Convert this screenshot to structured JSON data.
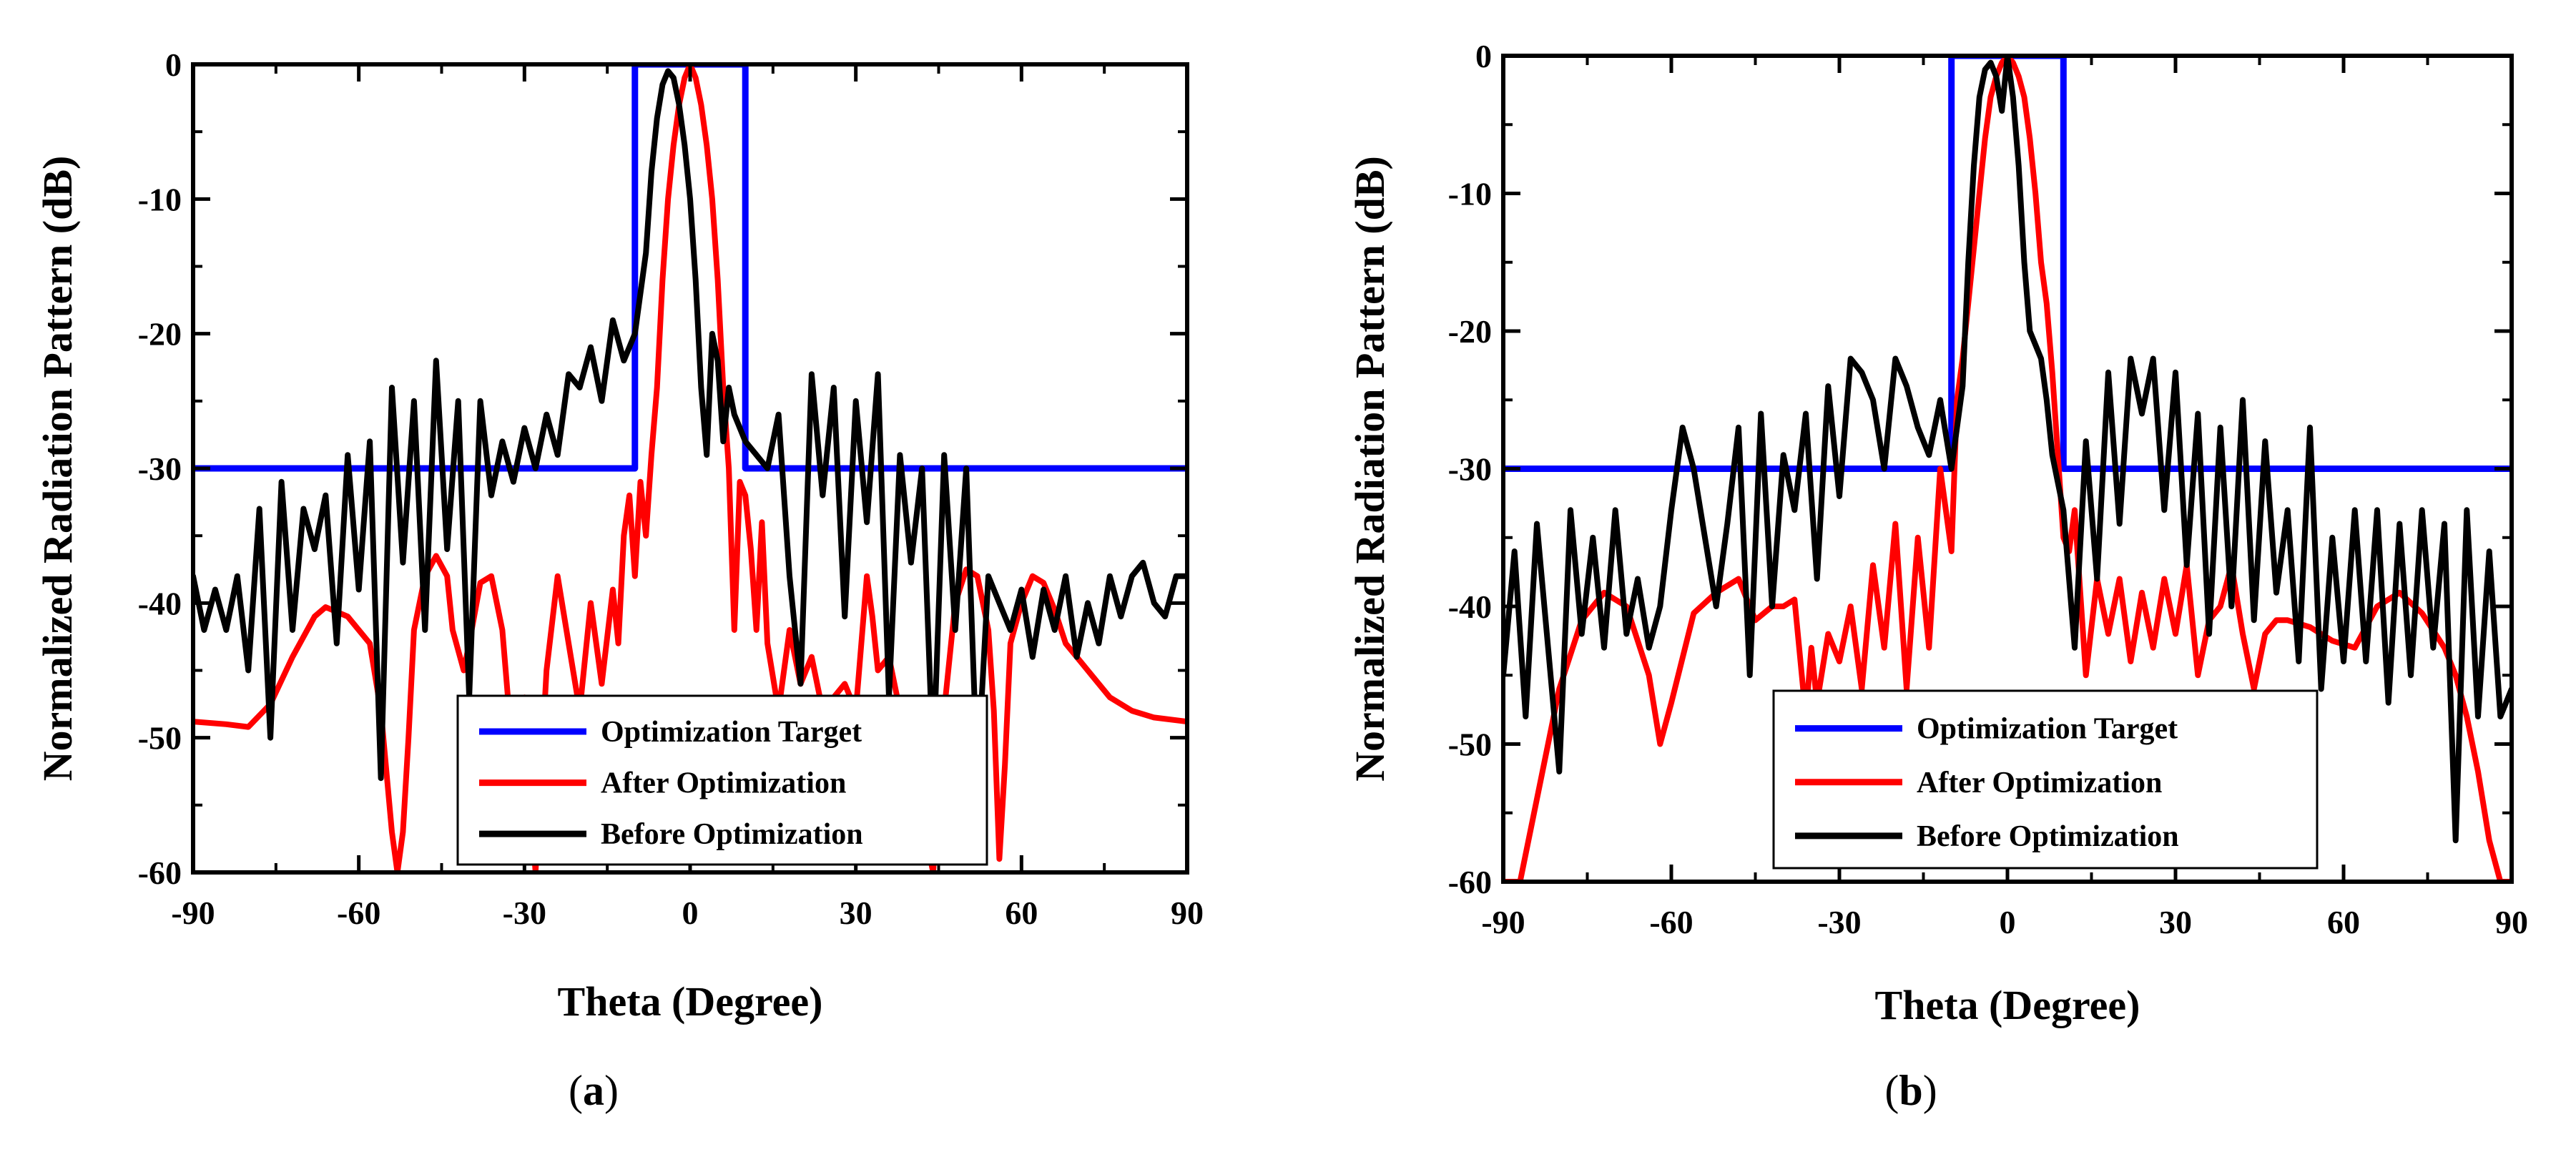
{
  "colors": {
    "optimization_target": "#0000ff",
    "after_optimization": "#ff0000",
    "before_optimization": "#000000",
    "axes": "#000000",
    "background": "#ffffff"
  },
  "chart_data": [
    {
      "type": "line",
      "panel_label": "a",
      "title": "",
      "xlabel": "Theta (Degree)",
      "ylabel": "Normalized Radiation Pattern (dB)",
      "xlim": [
        -90,
        90
      ],
      "ylim": [
        -60,
        0
      ],
      "xticks": [
        -90,
        -60,
        -30,
        0,
        30,
        60,
        90
      ],
      "yticks": [
        0,
        -10,
        -20,
        -30,
        -40,
        -50,
        -60
      ],
      "x_tick_labels": [
        "-90",
        "-60",
        "-30",
        "0",
        "30",
        "60",
        "90"
      ],
      "y_tick_labels": [
        "0",
        "-10",
        "-20",
        "-30",
        "-40",
        "-50",
        "-60"
      ],
      "grid": false,
      "legend_position": "bottom-right",
      "series": [
        {
          "name": "Optimization Target",
          "color": "#0000ff",
          "x": [
            -90,
            -10,
            -10,
            10,
            10,
            90
          ],
          "y": [
            -30,
            -30,
            0,
            0,
            -30,
            -30
          ]
        },
        {
          "name": "After Optimization",
          "color": "#ff0000",
          "x": [
            -90,
            -84,
            -80,
            -76,
            -72,
            -68,
            -66,
            -62,
            -58,
            -56,
            -54,
            -53,
            -52,
            -51,
            -50,
            -48,
            -46,
            -44,
            -43,
            -41,
            -40,
            -38,
            -36,
            -34,
            -33,
            -32,
            -30,
            -28,
            -26,
            -24,
            -22,
            -20,
            -18,
            -16,
            -14,
            -13,
            -12,
            -11,
            -10,
            -9,
            -8,
            -7,
            -6,
            -5,
            -4,
            -3,
            -2,
            -1,
            0,
            1,
            2,
            3,
            4,
            5,
            6,
            7,
            8,
            9,
            10,
            11,
            12,
            13,
            14,
            16,
            18,
            20,
            22,
            24,
            26,
            28,
            30,
            32,
            33,
            34,
            36,
            38,
            40,
            42,
            44,
            46,
            48,
            50,
            52,
            54,
            55,
            56,
            57,
            58,
            60,
            62,
            64,
            66,
            68,
            72,
            76,
            80,
            84,
            90
          ],
          "y": [
            -48.8,
            -49,
            -49.2,
            -47.5,
            -44,
            -41,
            -40.3,
            -41,
            -43,
            -48,
            -57,
            -60,
            -57,
            -50,
            -42,
            -38,
            -36.5,
            -38,
            -42,
            -45,
            -43,
            -38.5,
            -38,
            -42,
            -47,
            -52,
            -47,
            -60,
            -45,
            -38,
            -43,
            -48,
            -40,
            -46,
            -39,
            -43,
            -35,
            -32,
            -38,
            -31,
            -35,
            -29,
            -24,
            -16,
            -10,
            -6,
            -3,
            -1,
            0,
            -1,
            -3,
            -6,
            -10,
            -16,
            -24,
            -30,
            -42,
            -31,
            -32,
            -36,
            -42,
            -34,
            -43,
            -48,
            -42,
            -46,
            -44,
            -48,
            -47,
            -46,
            -48,
            -38,
            -41,
            -45,
            -44,
            -48,
            -51,
            -56,
            -60,
            -48,
            -40,
            -37.5,
            -38,
            -42,
            -48,
            -59,
            -52,
            -43,
            -40,
            -38,
            -38.5,
            -40.5,
            -43,
            -45,
            -47,
            -48,
            -48.5,
            -48.8
          ]
        },
        {
          "name": "Before Optimization",
          "color": "#000000",
          "x": [
            -90,
            -88,
            -86,
            -84,
            -82,
            -80,
            -78,
            -76,
            -74,
            -72,
            -70,
            -68,
            -66,
            -64,
            -62,
            -60,
            -58,
            -56,
            -54,
            -52,
            -50,
            -48,
            -46,
            -44,
            -42,
            -40,
            -38,
            -36,
            -34,
            -32,
            -30,
            -28,
            -26,
            -24,
            -22,
            -20,
            -18,
            -16,
            -14,
            -12,
            -10,
            -8,
            -7,
            -6,
            -5,
            -4,
            -3,
            -2,
            -1,
            0,
            1,
            2,
            3,
            4,
            5,
            6,
            7,
            8,
            10,
            12,
            14,
            16,
            18,
            20,
            22,
            24,
            26,
            28,
            30,
            32,
            34,
            36,
            38,
            40,
            42,
            44,
            46,
            48,
            50,
            52,
            54,
            56,
            58,
            60,
            62,
            64,
            66,
            68,
            70,
            72,
            74,
            76,
            78,
            80,
            82,
            84,
            86,
            88,
            90
          ],
          "y": [
            -38,
            -42,
            -39,
            -42,
            -38,
            -45,
            -33,
            -50,
            -31,
            -42,
            -33,
            -36,
            -32,
            -43,
            -29,
            -39,
            -28,
            -53,
            -24,
            -37,
            -25,
            -42,
            -22,
            -36,
            -25,
            -47,
            -25,
            -32,
            -28,
            -31,
            -27,
            -30,
            -26,
            -29,
            -23,
            -24,
            -21,
            -25,
            -19,
            -22,
            -20,
            -14,
            -8,
            -4,
            -1.5,
            -0.5,
            -1,
            -3,
            -6,
            -10,
            -16,
            -24,
            -29,
            -20,
            -22,
            -28,
            -24,
            -26,
            -28,
            -29,
            -30,
            -26,
            -38,
            -46,
            -23,
            -32,
            -24,
            -41,
            -25,
            -34,
            -23,
            -47,
            -29,
            -37,
            -30,
            -52,
            -29,
            -42,
            -30,
            -53,
            -38,
            -40,
            -42,
            -39,
            -44,
            -39,
            -42,
            -38,
            -44,
            -40,
            -43,
            -38,
            -41,
            -38,
            -37,
            -40,
            -41,
            -38,
            -38
          ]
        }
      ]
    },
    {
      "type": "line",
      "panel_label": "b",
      "title": "",
      "xlabel": "Theta (Degree)",
      "ylabel": "Normalized Radiation Pattern (dB)",
      "xlim": [
        -90,
        90
      ],
      "ylim": [
        -60,
        0
      ],
      "xticks": [
        -90,
        -60,
        -30,
        0,
        30,
        60,
        90
      ],
      "yticks": [
        0,
        -10,
        -20,
        -30,
        -40,
        -50,
        -60
      ],
      "x_tick_labels": [
        "-90",
        "-60",
        "-30",
        "0",
        "30",
        "60",
        "90"
      ],
      "y_tick_labels": [
        "0",
        "-10",
        "-20",
        "-30",
        "-40",
        "-50",
        "-60"
      ],
      "grid": false,
      "legend_position": "bottom-right",
      "series": [
        {
          "name": "Optimization Target",
          "color": "#0000ff",
          "x": [
            -90,
            -10,
            -10,
            10,
            10,
            90
          ],
          "y": [
            -30,
            -30,
            0,
            0,
            -30,
            -30
          ]
        },
        {
          "name": "After Optimization",
          "color": "#ff0000",
          "x": [
            -90,
            -87,
            -84,
            -80,
            -76,
            -72,
            -68,
            -64,
            -62,
            -60,
            -56,
            -52,
            -48,
            -45,
            -42,
            -40,
            -38,
            -36,
            -35,
            -34,
            -32,
            -30,
            -28,
            -26,
            -24,
            -22,
            -20,
            -18,
            -16,
            -14,
            -12,
            -10,
            -9,
            -8,
            -7,
            -6,
            -5,
            -4,
            -3,
            -2,
            -1,
            0,
            1,
            2,
            3,
            4,
            5,
            6,
            7,
            8,
            9,
            10,
            11,
            12,
            14,
            16,
            18,
            20,
            22,
            24,
            26,
            28,
            30,
            32,
            34,
            36,
            38,
            40,
            42,
            44,
            46,
            48,
            50,
            54,
            58,
            62,
            66,
            70,
            74,
            78,
            80,
            82,
            84,
            86,
            88,
            90
          ],
          "y": [
            -60,
            -60,
            -54,
            -46,
            -41,
            -39,
            -40,
            -45,
            -50,
            -47,
            -40.5,
            -39,
            -38,
            -41,
            -40,
            -40,
            -39.5,
            -48,
            -43,
            -47,
            -42,
            -44,
            -40,
            -46,
            -37,
            -43,
            -34,
            -46,
            -35,
            -43,
            -30,
            -36,
            -25,
            -22,
            -18,
            -14,
            -10,
            -6,
            -3,
            -1.5,
            -0.5,
            0,
            -0.5,
            -1.5,
            -3,
            -6,
            -10,
            -15,
            -18,
            -23,
            -29,
            -35,
            -36,
            -33,
            -45,
            -38,
            -42,
            -38,
            -44,
            -39,
            -43,
            -38,
            -42,
            -37,
            -45,
            -41,
            -40,
            -37,
            -42,
            -46,
            -42,
            -41,
            -41,
            -41.5,
            -42.5,
            -43,
            -40,
            -39,
            -40.5,
            -43,
            -45,
            -48,
            -52,
            -57,
            -60,
            -60
          ]
        },
        {
          "name": "Before Optimization",
          "color": "#000000",
          "x": [
            -90,
            -88,
            -86,
            -84,
            -82,
            -80,
            -78,
            -76,
            -74,
            -72,
            -70,
            -68,
            -66,
            -64,
            -62,
            -60,
            -58,
            -56,
            -54,
            -52,
            -50,
            -48,
            -46,
            -44,
            -42,
            -40,
            -38,
            -36,
            -34,
            -32,
            -30,
            -28,
            -26,
            -24,
            -22,
            -20,
            -18,
            -16,
            -14,
            -12,
            -10,
            -8,
            -7,
            -6,
            -5,
            -4,
            -3,
            -2,
            -1,
            0,
            1,
            2,
            3,
            4,
            5,
            6,
            7,
            8,
            10,
            12,
            14,
            16,
            18,
            20,
            22,
            24,
            26,
            28,
            30,
            32,
            34,
            36,
            38,
            40,
            42,
            44,
            46,
            48,
            50,
            52,
            54,
            56,
            58,
            60,
            62,
            64,
            66,
            68,
            70,
            72,
            74,
            76,
            78,
            80,
            82,
            84,
            86,
            88,
            90
          ],
          "y": [
            -45,
            -36,
            -48,
            -34,
            -43,
            -52,
            -33,
            -42,
            -35,
            -43,
            -33,
            -42,
            -38,
            -43,
            -40,
            -33,
            -27,
            -30,
            -35,
            -40,
            -34,
            -27,
            -45,
            -26,
            -40,
            -29,
            -33,
            -26,
            -38,
            -24,
            -32,
            -22,
            -23,
            -25,
            -30,
            -22,
            -24,
            -27,
            -29,
            -25,
            -30,
            -24,
            -15,
            -8,
            -3,
            -1,
            -0.5,
            -1.5,
            -4,
            0,
            -3,
            -8,
            -15,
            -20,
            -21,
            -22,
            -25,
            -29,
            -33,
            -43,
            -28,
            -38,
            -23,
            -34,
            -22,
            -26,
            -22,
            -33,
            -23,
            -37,
            -26,
            -42,
            -27,
            -40,
            -25,
            -41,
            -28,
            -39,
            -33,
            -44,
            -27,
            -46,
            -35,
            -44,
            -33,
            -44,
            -33,
            -47,
            -34,
            -45,
            -33,
            -43,
            -34,
            -57,
            -33,
            -48,
            -36,
            -48,
            -46
          ]
        }
      ]
    }
  ]
}
